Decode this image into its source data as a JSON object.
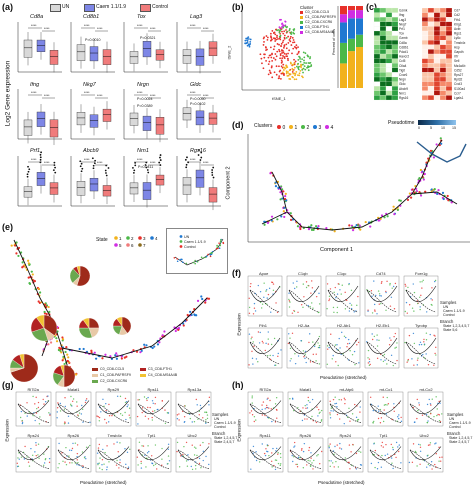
{
  "panel_labels": [
    "(a)",
    "(b)",
    "(c)",
    "(d)",
    "(e)",
    "(f)",
    "(g)",
    "(h)"
  ],
  "panel_a": {
    "legend": [
      "UN",
      "Caem 1.1/1.9",
      "Control"
    ],
    "colors": [
      "#d9d9d9",
      "#7d86e6",
      "#f07b7b"
    ],
    "ylabel": "Log2 Gene expression",
    "genes": [
      "Cd8a",
      "Cd8b1",
      "Tox",
      "Lag3",
      "Ifng",
      "Nkg7",
      "Nrgn",
      "Gldc",
      "Prf1",
      "Abcb9",
      "Nrn1",
      "Rgs16"
    ],
    "pvals": [
      "P=0.0010",
      "P=0.0321",
      "P=0.0024",
      "P=0.0050",
      "P=0.0102",
      "P=0.0389",
      "P=0.0411"
    ]
  },
  "panel_b": {
    "legend_title": "Cluster",
    "clusters": [
      "C0_CD8-CCL5",
      "C1_CD8-PAFRSF9",
      "C2_CD8-CXCR6",
      "C3_CD8-FTH1",
      "C4_CD8-MS4A4B"
    ],
    "cluster_colors": [
      "#e7302a",
      "#f2b21c",
      "#4cb848",
      "#1f78d1",
      "#d02de3"
    ],
    "xlabel": "tSNE_1",
    "ylabel": "tSNE_2",
    "bar_ylabel": "Percent of cells"
  },
  "panel_c": {
    "genes_left": [
      "Gzmk",
      "Ifng",
      "Lag3",
      "Nkg7",
      "Prf1",
      "Tox",
      "Gzmb",
      "Cd8a",
      "Cd8b1",
      "Pdcd1",
      "Havcr2",
      "Ccl5",
      "Ctla4",
      "Tigit",
      "Cxcr6",
      "Nrgn",
      "Gldc",
      "Abcb9",
      "Nrn1",
      "Rgs16"
    ],
    "genes_right": [
      "Cd7",
      "Cd2",
      "Fth1",
      "Klrg1",
      "Actb",
      "Rgs1",
      "Ly6c",
      "Tmsb4x",
      "Hsp",
      "Gapdh",
      "Il7r",
      "Sell",
      "Ms4a4b",
      "Cd52",
      "Rps27",
      "Rpl32",
      "Cxcl3",
      "S100a4",
      "Ccr7",
      "Lgals1"
    ]
  },
  "panel_d": {
    "legend_title": "Clusters",
    "clusters": [
      "0",
      "1",
      "2",
      "3",
      "4"
    ],
    "cluster_colors": [
      "#e7302a",
      "#f2b21c",
      "#4cb848",
      "#1f78d1",
      "#d02de3"
    ],
    "pseudotime_label": "Pseudotime",
    "pseudotime_ticks": [
      "0",
      "5",
      "10",
      "15"
    ],
    "xlabel": "Component 1",
    "ylabel": "Component 2"
  },
  "panel_e": {
    "state_label": "State",
    "states": [
      "1",
      "2",
      "3",
      "4",
      "5",
      "6",
      "7"
    ],
    "state_colors": [
      "#f2b21c",
      "#4cb848",
      "#e7302a",
      "#1f78d1",
      "#d02de3",
      "#f07b7b",
      "#8b6b1c"
    ],
    "inset_legend": [
      "UN",
      "Caem 1.1/1.9",
      "Control"
    ],
    "legend": [
      "C0_CD8-CCL5",
      "C1_CD8-PAFRSF9",
      "C2_CD8-CXCR6",
      "C3_CD8-FTH1",
      "C4_CD8-MS4A4B"
    ],
    "legend_colors": [
      "#9e2a1a",
      "#e8c9a7",
      "#6aa84f",
      "#b22222",
      "#f1c232"
    ]
  },
  "panel_f": {
    "genes_row1": [
      "Apoe",
      "C1qb",
      "C1qc",
      "Cd74",
      "Fcer1g"
    ],
    "genes_row2": [
      "Fth1",
      "H2-Aa",
      "H2-Ab1",
      "H2-Eb1",
      "Tyrobp"
    ],
    "ylabel": "Expression",
    "xlabel": "Pseudotime (stretched)",
    "legend_title1": "Samples",
    "samples": [
      "UN",
      "Caem 1.1/1.9",
      "Control"
    ],
    "legend_title2": "Branch",
    "branches": [
      "State 1,2,3,4,5,7",
      "State 5,6"
    ]
  },
  "panel_g": {
    "genes_row1": [
      "Rl7l2a",
      "Malat1",
      "Rps29",
      "Rps11",
      "Rps13a"
    ],
    "genes_row2": [
      "Rps24",
      "Rps26",
      "Tmsb4x",
      "Tpt1",
      "Ubc2"
    ],
    "ylabel": "Expression",
    "xlabel": "Pseudotime (stretched)",
    "legend_title1": "Samples",
    "samples": [
      "UN",
      "Caem 1.1/1.9",
      "Control"
    ],
    "legend_title2": "Branch",
    "branches": [
      "State 1,2,4,5,7",
      "State 2,4,5,7"
    ]
  },
  "panel_h": {
    "genes_row1": [
      "Rl7l2a",
      "Malat1",
      "mt-Atp6",
      "mt-Co1",
      "mt-Co2"
    ],
    "genes_row2": [
      "Rps11",
      "Rps26",
      "Rps24",
      "Tpt1",
      "Ubc2"
    ],
    "ylabel": "Expression",
    "xlabel": "Pseudotime (stretched)",
    "legend_title1": "Samples",
    "samples": [
      "UN",
      "Caem 1.1/1.9",
      "Control"
    ],
    "legend_title2": "Branch",
    "branches": [
      "State 1,2,4,5,7",
      "State 2,4,5,7"
    ]
  }
}
